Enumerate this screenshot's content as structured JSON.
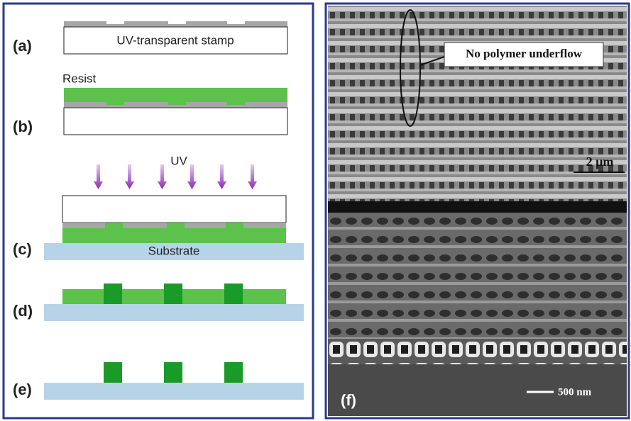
{
  "panels": {
    "left": {
      "labels": [
        "(a)",
        "(b)",
        "(c)",
        "(d)",
        "(e)"
      ],
      "stamp_label": "UV-transparent stamp",
      "resist_label": "Resist",
      "uv_label": "UV",
      "substrate_label": "Substrate"
    },
    "right": {
      "label": "(f)",
      "annotation": "No polymer underflow",
      "scale_top": "2 µm",
      "scale_bottom": "500 nm"
    }
  }
}
